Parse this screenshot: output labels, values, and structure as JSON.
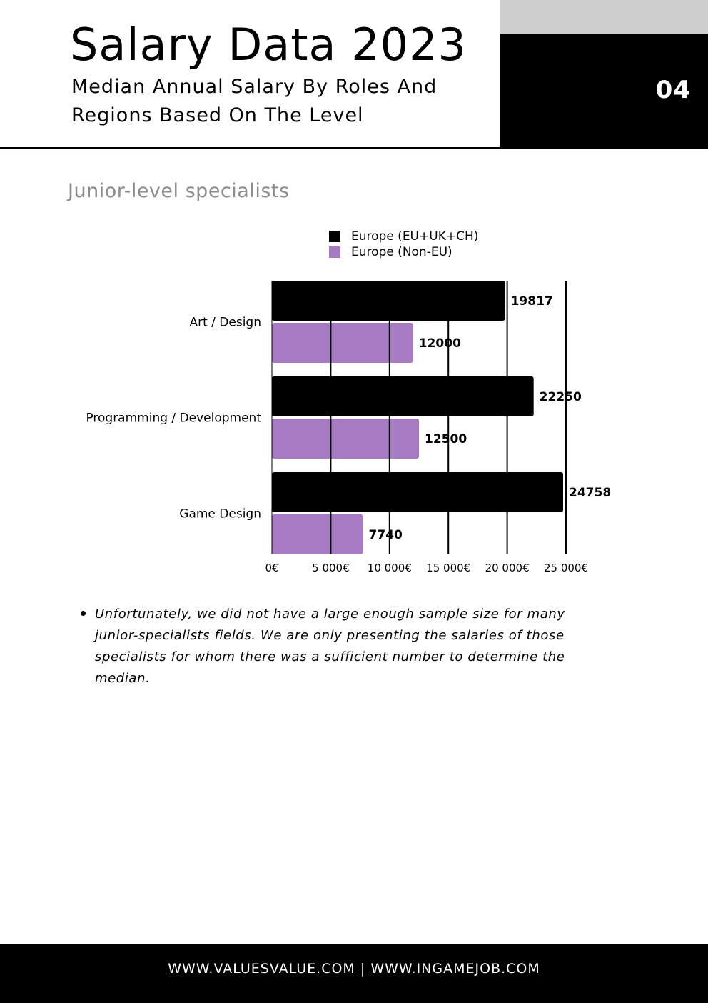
{
  "header": {
    "title": "Salary Data 2023",
    "subtitle": "Median Annual Salary By Roles And Regions Based On The Level",
    "page_number": "04"
  },
  "section": {
    "heading": "Junior-level specialists"
  },
  "chart_data": {
    "type": "bar",
    "orientation": "horizontal",
    "title": "",
    "xlabel": "",
    "ylabel": "",
    "categories": [
      "Art / Design",
      "Programming / Development",
      "Game Design"
    ],
    "series": [
      {
        "name": "Europe (EU+UK+CH)",
        "color": "#000000",
        "values": [
          19817,
          22250,
          24758
        ],
        "labels": [
          "19817",
          "22250",
          "24758"
        ]
      },
      {
        "name": "Europe (Non-EU)",
        "color": "#a77bc4",
        "values": [
          12000,
          12500,
          7740
        ],
        "labels": [
          "12000",
          "12500",
          "7740"
        ]
      }
    ],
    "xlim": [
      0,
      25000
    ],
    "ticks": [
      0,
      5000,
      10000,
      15000,
      20000,
      25000
    ],
    "tick_labels": [
      "0€",
      "5 000€",
      "10 000€",
      "15 000€",
      "20 000€",
      "25 000€"
    ],
    "grid": true,
    "legend_position": "top"
  },
  "note": {
    "text": "Unfortunately, we did not have a large enough sample size for many junior-specialists fields. We are only presenting the salaries of those specialists for whom there was a sufficient number to determine the median."
  },
  "footer": {
    "link_1": "WWW.VALUESVALUE.COM",
    "separator": "|",
    "link_2": "WWW.INGAMEJOB.COM"
  }
}
